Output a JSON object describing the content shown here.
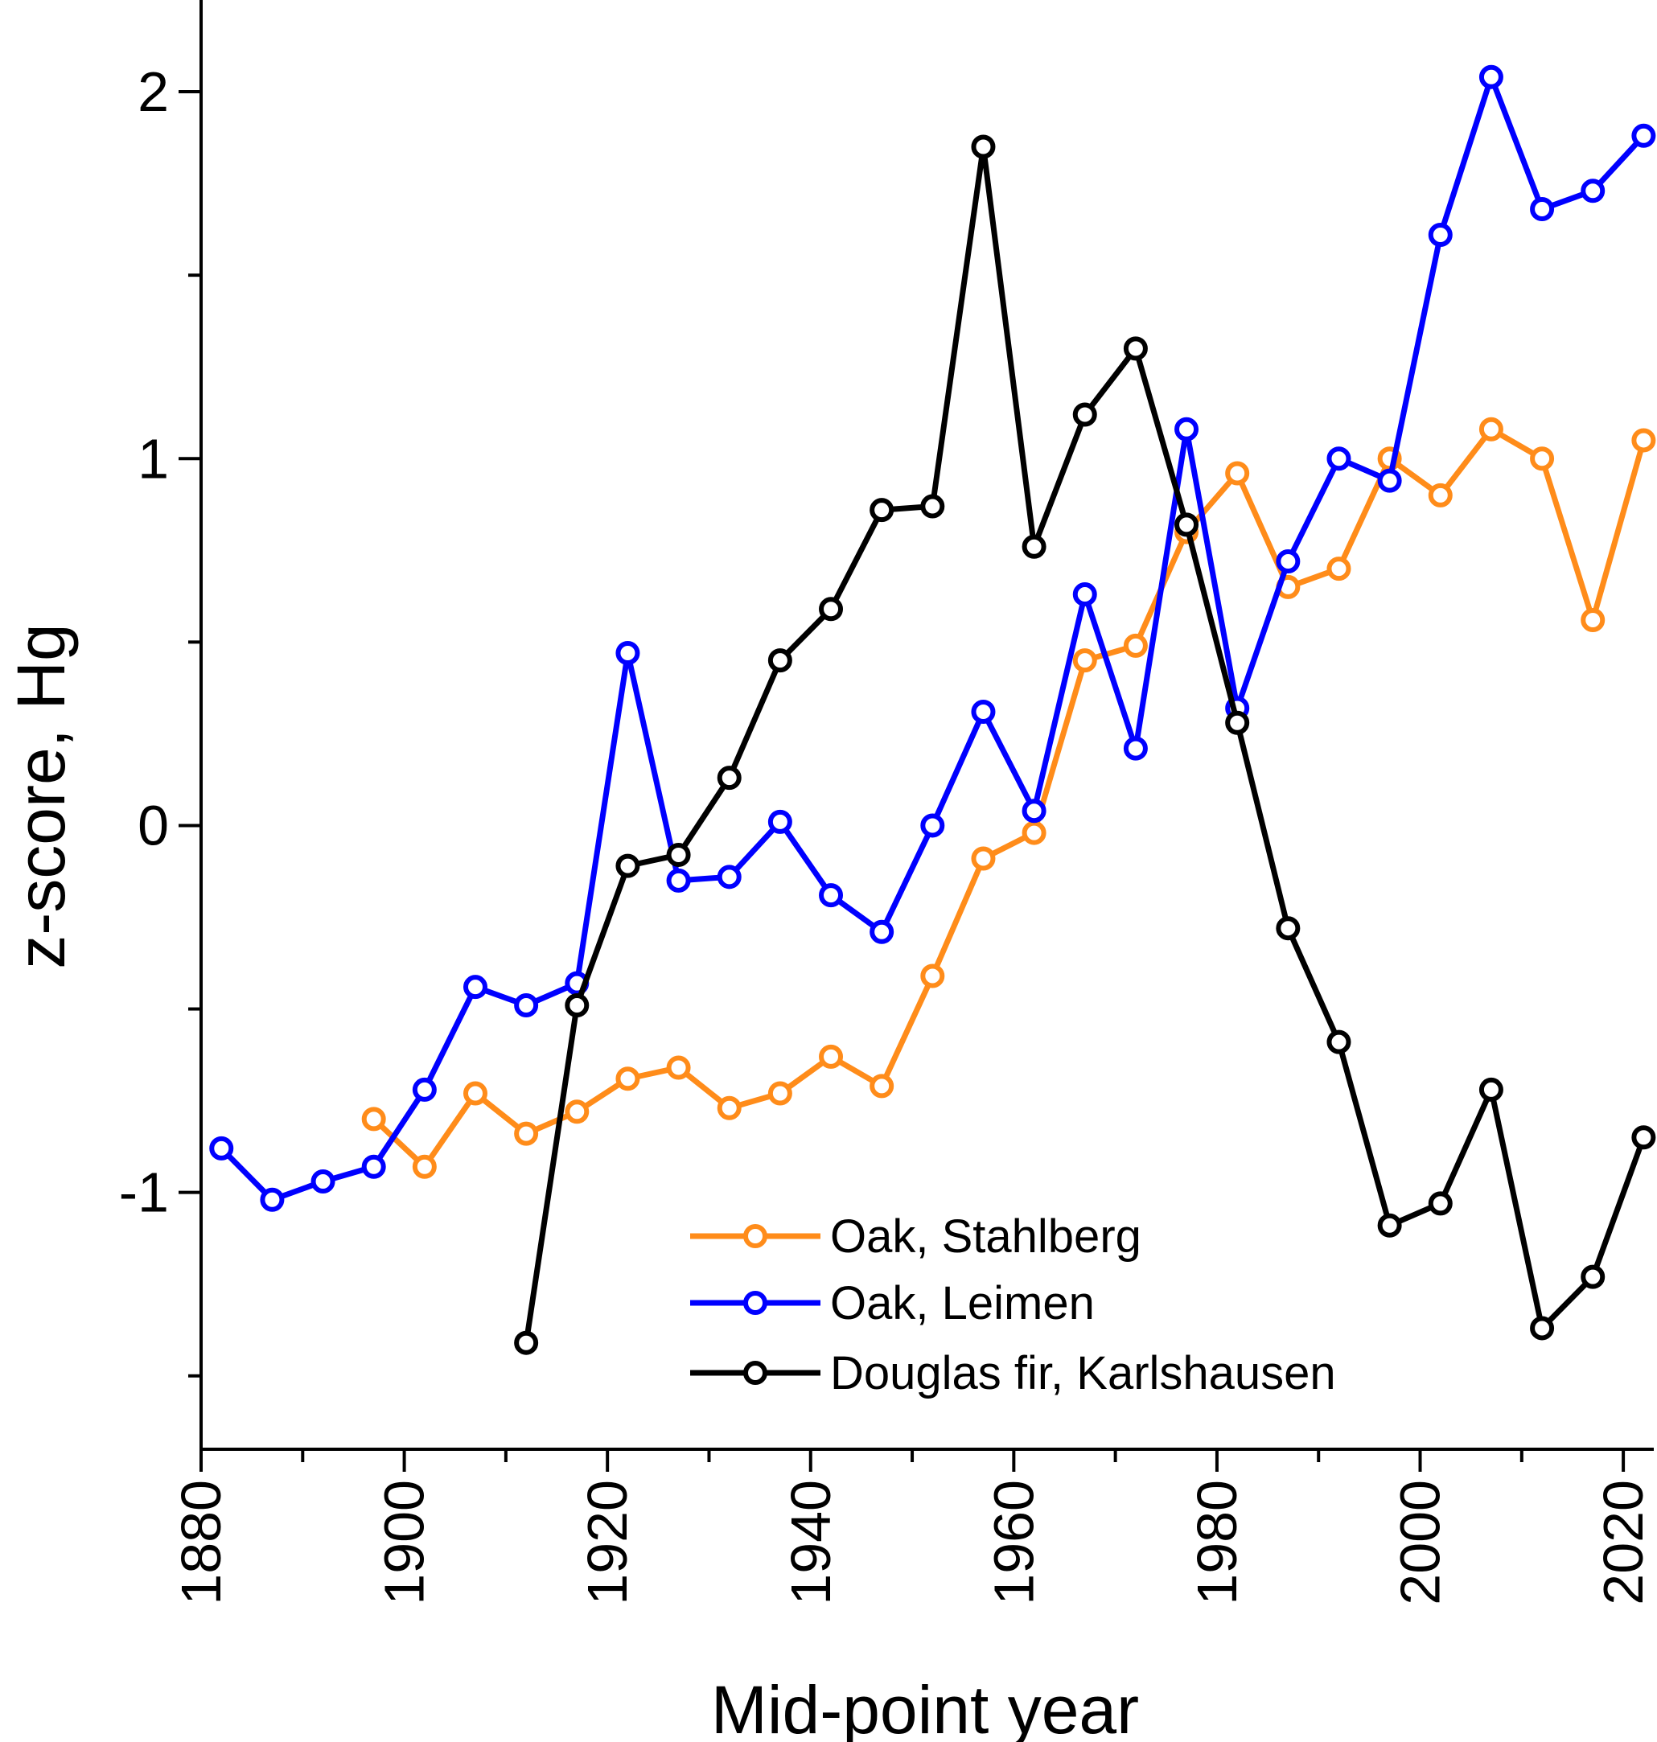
{
  "chart_data": {
    "type": "line",
    "xlabel": "Mid-point year",
    "ylabel": "z-score, Hg",
    "xlim": [
      1880,
      2023
    ],
    "ylim": [
      -1.7,
      2.25
    ],
    "x_ticks": [
      1880,
      1900,
      1920,
      1940,
      1960,
      1980,
      2000,
      2020
    ],
    "y_ticks": [
      2,
      1,
      0,
      -1
    ],
    "y_tick_labels": [
      "2",
      "1",
      "0",
      "-1"
    ],
    "legend_position": "bottom-right",
    "series": [
      {
        "name": "Oak, Stahlberg",
        "color": "#ff8c1a",
        "x": [
          1897,
          1902,
          1907,
          1912,
          1917,
          1922,
          1927,
          1932,
          1937,
          1942,
          1947,
          1952,
          1957,
          1962,
          1967,
          1972,
          1977,
          1982,
          1987,
          1992,
          1997,
          2002,
          2007,
          2012,
          2017,
          2022
        ],
        "y": [
          -0.8,
          -0.93,
          -0.73,
          -0.84,
          -0.78,
          -0.69,
          -0.66,
          -0.77,
          -0.73,
          -0.63,
          -0.71,
          -0.41,
          -0.09,
          -0.02,
          0.45,
          0.49,
          0.8,
          0.96,
          0.65,
          0.7,
          1.0,
          0.9,
          1.08,
          1.0,
          0.56,
          1.05
        ]
      },
      {
        "name": "Oak, Leimen",
        "color": "#0000ff",
        "x": [
          1882,
          1887,
          1892,
          1897,
          1902,
          1907,
          1912,
          1917,
          1922,
          1927,
          1932,
          1937,
          1942,
          1947,
          1952,
          1957,
          1962,
          1967,
          1972,
          1977,
          1982,
          1987,
          1992,
          1997,
          2002,
          2007,
          2012,
          2017,
          2022
        ],
        "y": [
          -0.88,
          -1.02,
          -0.97,
          -0.93,
          -0.72,
          -0.44,
          -0.49,
          -0.43,
          0.47,
          -0.15,
          -0.14,
          0.01,
          -0.19,
          -0.29,
          0.0,
          0.31,
          0.04,
          0.63,
          0.21,
          1.08,
          0.32,
          0.72,
          1.0,
          0.94,
          1.61,
          2.04,
          1.68,
          1.73,
          1.88
        ]
      },
      {
        "name": "Douglas fir, Karlshausen",
        "color": "#000000",
        "x": [
          1912,
          1917,
          1922,
          1927,
          1932,
          1937,
          1942,
          1947,
          1952,
          1957,
          1962,
          1967,
          1972,
          1977,
          1982,
          1987,
          1992,
          1997,
          2002,
          2007,
          2012,
          2017,
          2022
        ],
        "y": [
          -1.41,
          -0.49,
          -0.11,
          -0.08,
          0.13,
          0.45,
          0.59,
          0.86,
          0.87,
          1.85,
          0.76,
          1.12,
          1.3,
          0.82,
          0.28,
          -0.28,
          -0.59,
          -1.09,
          -1.03,
          -0.72,
          -1.37,
          -1.23,
          -0.85
        ]
      }
    ]
  }
}
